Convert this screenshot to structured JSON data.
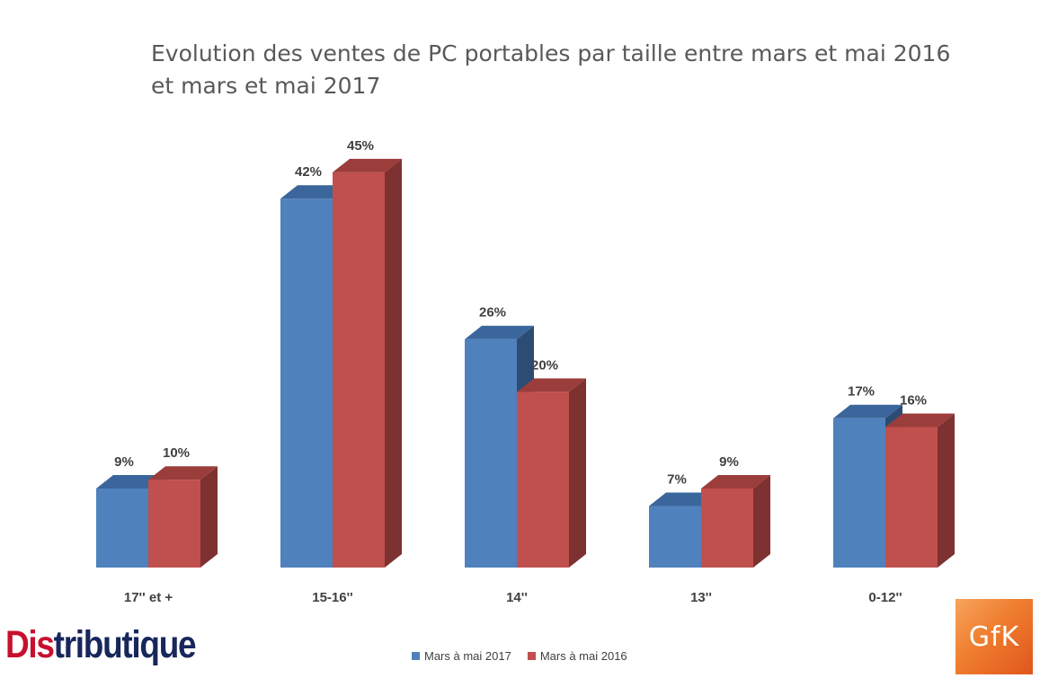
{
  "title_line1": "Evolution des ventes de PC portables par taille entre mars et mai 2016",
  "title_line2": "et mars et mai 2017",
  "logo_left_red": "Dis",
  "logo_left_rest": "tributique",
  "logo_right": "GfK",
  "colors": {
    "series1_front": "#4f81bd",
    "series1_side": "#2c4c74",
    "series1_top": "#3b669b",
    "series2_front": "#c0504d",
    "series2_side": "#7d3130",
    "series2_top": "#9b3d3b"
  },
  "chart_data": {
    "type": "bar",
    "style": "3d-clustered-column",
    "title": "Evolution des ventes de PC portables par taille entre mars et mai 2016 et mars et mai 2017",
    "categories": [
      "17'' et +",
      "15-16''",
      "14''",
      "13''",
      "0-12''"
    ],
    "series": [
      {
        "name": "Mars à mai 2017",
        "values": [
          9,
          42,
          26,
          7,
          17
        ],
        "labels": [
          "9%",
          "42%",
          "26%",
          "7%",
          "17%"
        ]
      },
      {
        "name": "Mars à mai 2016",
        "values": [
          10,
          45,
          20,
          9,
          16
        ],
        "labels": [
          "10%",
          "45%",
          "20%",
          "9%",
          "16%"
        ]
      }
    ],
    "unit": "%",
    "grid": false,
    "legend_position": "bottom",
    "ylim": [
      0,
      45
    ]
  }
}
